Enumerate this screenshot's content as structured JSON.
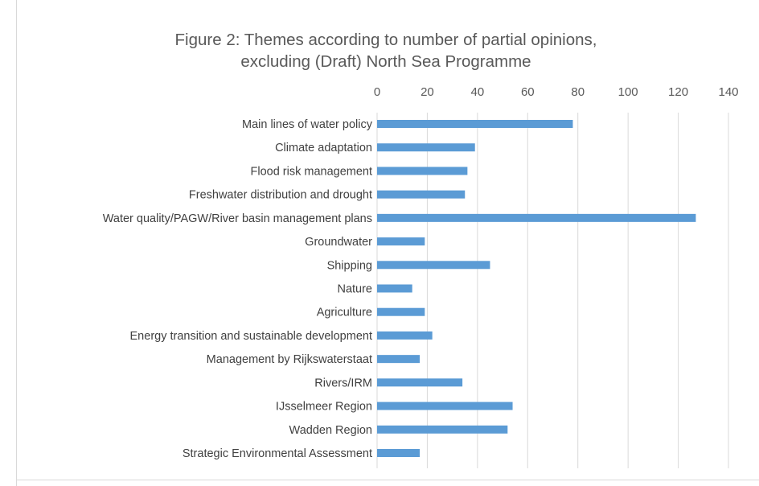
{
  "chart_data": {
    "type": "bar",
    "orientation": "horizontal",
    "title_line1": "Figure 2: Themes according to number of partial opinions,",
    "title_line2": "excluding (Draft) North Sea Programme",
    "categories": [
      "Main lines of water policy",
      "Climate adaptation",
      "Flood risk management",
      "Freshwater distribution and drought",
      "Water quality/PAGW/River basin management plans",
      "Groundwater",
      "Shipping",
      "Nature",
      "Agriculture",
      "Energy transition and sustainable development",
      "Management by Rijkswaterstaat",
      "Rivers/IRM",
      "IJsselmeer Region",
      "Wadden Region",
      "Strategic Environmental Assessment"
    ],
    "values": [
      78,
      39,
      36,
      35,
      127,
      19,
      45,
      14,
      19,
      22,
      17,
      34,
      54,
      52,
      17
    ],
    "xlim": [
      0,
      140
    ],
    "xticks": [
      "0",
      "20",
      "40",
      "60",
      "80",
      "100",
      "120",
      "140"
    ],
    "x_axis_position": "top",
    "grid": true,
    "bar_color": "#5b9bd5",
    "grid_color": "#d9d9d9"
  }
}
